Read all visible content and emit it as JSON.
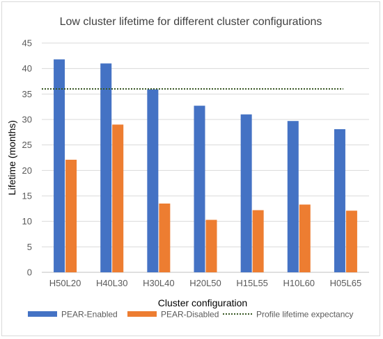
{
  "chart_data": {
    "type": "bar",
    "title": "Low cluster lifetime for different cluster configurations",
    "xlabel": "Cluster configuration",
    "ylabel": "Lifetime (months)",
    "ylim": [
      0,
      45
    ],
    "yticks": [
      0,
      5,
      10,
      15,
      20,
      25,
      30,
      35,
      40,
      45
    ],
    "grid": true,
    "legend_position": "bottom",
    "categories": [
      "H50L20",
      "H40L30",
      "H30L40",
      "H20L50",
      "H15L55",
      "H10L60",
      "H05L65"
    ],
    "series": [
      {
        "name": "PEAR-Enabled",
        "color": "#4472c4",
        "values": [
          41.8,
          41.0,
          35.9,
          32.7,
          31.0,
          29.7,
          28.1
        ]
      },
      {
        "name": "PEAR-Disabled",
        "color": "#ed7d31",
        "values": [
          22.1,
          29.0,
          13.5,
          10.3,
          12.2,
          13.3,
          12.1
        ]
      }
    ],
    "reference_line": {
      "name": "Profile lifetime expectancy",
      "value": 36,
      "color": "#375623",
      "style": "dotted"
    }
  }
}
